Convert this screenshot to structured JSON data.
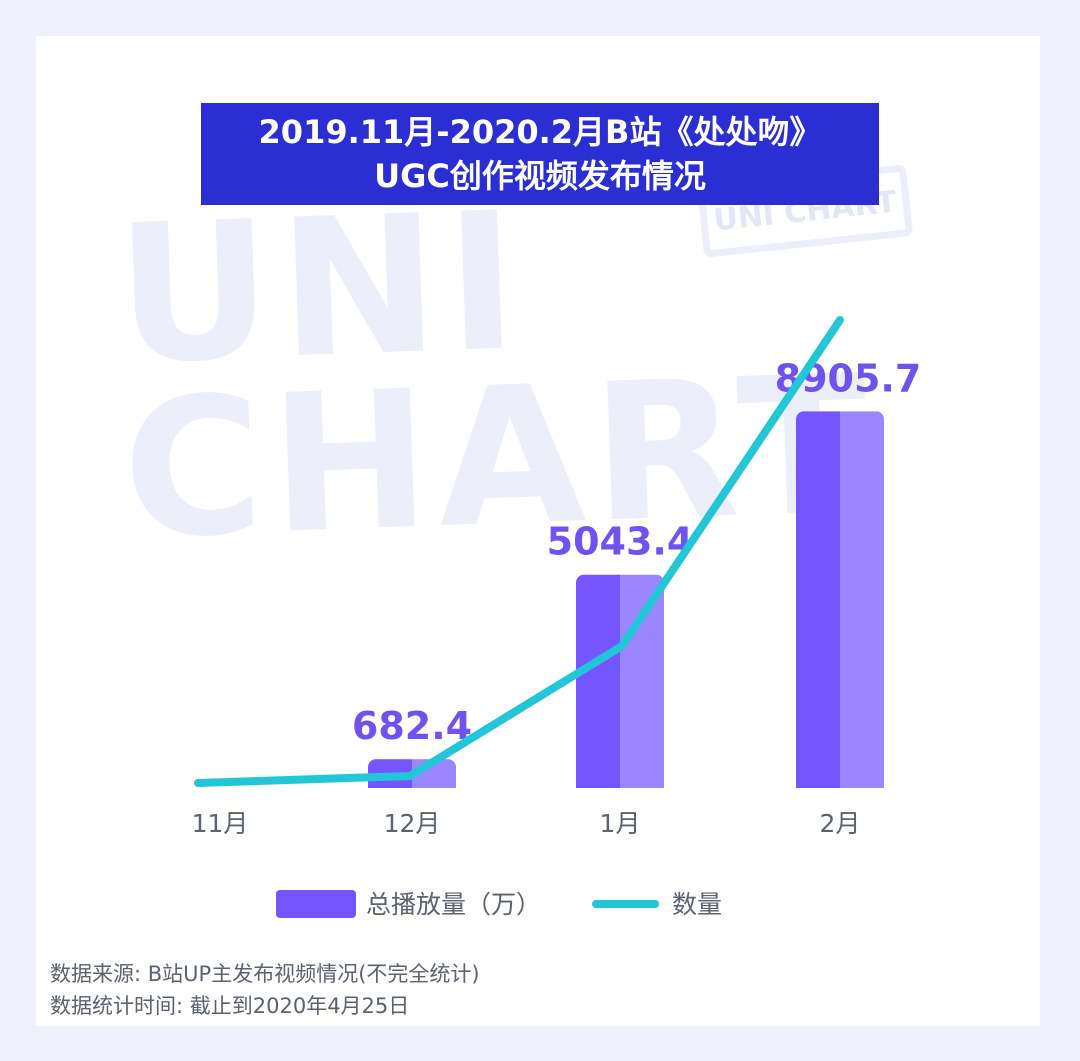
{
  "title": {
    "line1": "2019.11月-2020.2月B站《处处吻》",
    "line2": "UGC创作视频发布情况"
  },
  "watermark": {
    "text": "UNI CHART"
  },
  "colors": {
    "title_bg": "#2b2fd3",
    "bar_dark": "#7455ff",
    "bar_light": "#9b86ff",
    "line": "#22c6d6",
    "value_label": "#6f52f0"
  },
  "chart_data": {
    "type": "bar",
    "categories": [
      "11月",
      "12月",
      "1月",
      "2月"
    ],
    "series": [
      {
        "name": "总播放量（万）",
        "type": "bar",
        "values": [
          null,
          682.4,
          5043.4,
          8905.7
        ],
        "labels": [
          "",
          "682.4",
          "5043.4",
          "8905.7"
        ]
      },
      {
        "name": "数量",
        "type": "line",
        "values": [
          0.3,
          1.4,
          13.6,
          46.8
        ]
      }
    ],
    "ylim": [
      0,
      10000
    ],
    "legend": "bottom-center",
    "grid": false
  },
  "source": {
    "line1": "数据来源: B站UP主发布视频情况(不完全统计)",
    "line2": "数据统计时间: 截止到2020年4月25日"
  }
}
